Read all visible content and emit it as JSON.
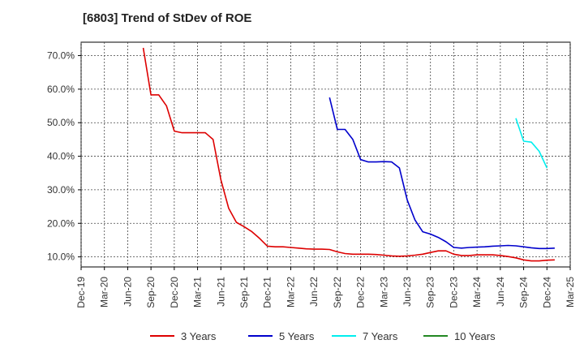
{
  "chart_data": {
    "type": "line",
    "title": "[6803]  Trend of StDev of ROE",
    "xlabel": "",
    "ylabel": "",
    "ylim": [
      7,
      74
    ],
    "y_ticks": [
      10,
      20,
      30,
      40,
      50,
      60,
      70
    ],
    "y_tick_labels": [
      "10.0%",
      "20.0%",
      "30.0%",
      "40.0%",
      "50.0%",
      "60.0%",
      "70.0%"
    ],
    "x_range": [
      "2019-12",
      "2025-03"
    ],
    "x_ticks": [
      "2019-12",
      "2020-03",
      "2020-06",
      "2020-09",
      "2020-12",
      "2021-03",
      "2021-06",
      "2021-09",
      "2021-12",
      "2022-03",
      "2022-06",
      "2022-09",
      "2022-12",
      "2023-03",
      "2023-06",
      "2023-09",
      "2023-12",
      "2024-03",
      "2024-06",
      "2024-09",
      "2024-12",
      "2025-03"
    ],
    "x_tick_labels": [
      "Dec-19",
      "Mar-20",
      "Jun-20",
      "Sep-20",
      "Dec-20",
      "Mar-21",
      "Jun-21",
      "Sep-21",
      "Dec-21",
      "Mar-22",
      "Jun-22",
      "Sep-22",
      "Dec-22",
      "Mar-23",
      "Jun-23",
      "Sep-23",
      "Dec-23",
      "Mar-24",
      "Jun-24",
      "Sep-24",
      "Dec-24",
      "Mar-25"
    ],
    "grid": true,
    "legend_position": "bottom",
    "series": [
      {
        "name": "3 Years",
        "color": "#dd0000",
        "points": [
          [
            "2020-08",
            72.3
          ],
          [
            "2020-09",
            58.3
          ],
          [
            "2020-10",
            58.3
          ],
          [
            "2020-11",
            55.0
          ],
          [
            "2020-12",
            47.5
          ],
          [
            "2021-01",
            47.0
          ],
          [
            "2021-02",
            47.0
          ],
          [
            "2021-03",
            47.0
          ],
          [
            "2021-04",
            47.0
          ],
          [
            "2021-05",
            45.0
          ],
          [
            "2021-06",
            33.0
          ],
          [
            "2021-07",
            24.5
          ],
          [
            "2021-08",
            20.3
          ],
          [
            "2021-09",
            19.0
          ],
          [
            "2021-10",
            17.5
          ],
          [
            "2021-11",
            15.5
          ],
          [
            "2021-12",
            13.2
          ],
          [
            "2022-01",
            13.0
          ],
          [
            "2022-02",
            13.0
          ],
          [
            "2022-03",
            12.8
          ],
          [
            "2022-04",
            12.6
          ],
          [
            "2022-05",
            12.4
          ],
          [
            "2022-06",
            12.3
          ],
          [
            "2022-07",
            12.3
          ],
          [
            "2022-08",
            12.2
          ],
          [
            "2022-09",
            11.5
          ],
          [
            "2022-10",
            11.0
          ],
          [
            "2022-11",
            10.8
          ],
          [
            "2022-12",
            10.8
          ],
          [
            "2023-01",
            10.8
          ],
          [
            "2023-02",
            10.7
          ],
          [
            "2023-03",
            10.5
          ],
          [
            "2023-04",
            10.3
          ],
          [
            "2023-05",
            10.2
          ],
          [
            "2023-06",
            10.3
          ],
          [
            "2023-07",
            10.5
          ],
          [
            "2023-08",
            10.8
          ],
          [
            "2023-09",
            11.3
          ],
          [
            "2023-10",
            11.8
          ],
          [
            "2023-11",
            11.8
          ],
          [
            "2023-12",
            10.8
          ],
          [
            "2024-01",
            10.4
          ],
          [
            "2024-02",
            10.4
          ],
          [
            "2024-03",
            10.6
          ],
          [
            "2024-04",
            10.6
          ],
          [
            "2024-05",
            10.6
          ],
          [
            "2024-06",
            10.4
          ],
          [
            "2024-07",
            10.1
          ],
          [
            "2024-08",
            9.7
          ],
          [
            "2024-09",
            9.1
          ],
          [
            "2024-10",
            8.8
          ],
          [
            "2024-11",
            8.8
          ],
          [
            "2024-12",
            9.0
          ],
          [
            "2025-01",
            9.1
          ]
        ]
      },
      {
        "name": "5 Years",
        "color": "#0000cc",
        "points": [
          [
            "2022-08",
            57.5
          ],
          [
            "2022-09",
            48.0
          ],
          [
            "2022-10",
            48.0
          ],
          [
            "2022-11",
            45.0
          ],
          [
            "2022-12",
            39.0
          ],
          [
            "2023-01",
            38.3
          ],
          [
            "2023-02",
            38.3
          ],
          [
            "2023-03",
            38.4
          ],
          [
            "2023-04",
            38.3
          ],
          [
            "2023-05",
            36.5
          ],
          [
            "2023-06",
            27.0
          ],
          [
            "2023-07",
            21.0
          ],
          [
            "2023-08",
            17.5
          ],
          [
            "2023-09",
            16.8
          ],
          [
            "2023-10",
            15.8
          ],
          [
            "2023-11",
            14.5
          ],
          [
            "2023-12",
            12.8
          ],
          [
            "2024-01",
            12.6
          ],
          [
            "2024-02",
            12.8
          ],
          [
            "2024-03",
            12.9
          ],
          [
            "2024-04",
            13.0
          ],
          [
            "2024-05",
            13.2
          ],
          [
            "2024-06",
            13.3
          ],
          [
            "2024-07",
            13.4
          ],
          [
            "2024-08",
            13.3
          ],
          [
            "2024-09",
            13.0
          ],
          [
            "2024-10",
            12.7
          ],
          [
            "2024-11",
            12.5
          ],
          [
            "2024-12",
            12.5
          ],
          [
            "2025-01",
            12.6
          ]
        ]
      },
      {
        "name": "7 Years",
        "color": "#00eeee",
        "points": [
          [
            "2024-08",
            51.3
          ],
          [
            "2024-09",
            44.5
          ],
          [
            "2024-10",
            44.2
          ],
          [
            "2024-11",
            41.5
          ],
          [
            "2024-12",
            36.5
          ]
        ]
      },
      {
        "name": "10 Years",
        "color": "#228822",
        "points": []
      }
    ]
  }
}
